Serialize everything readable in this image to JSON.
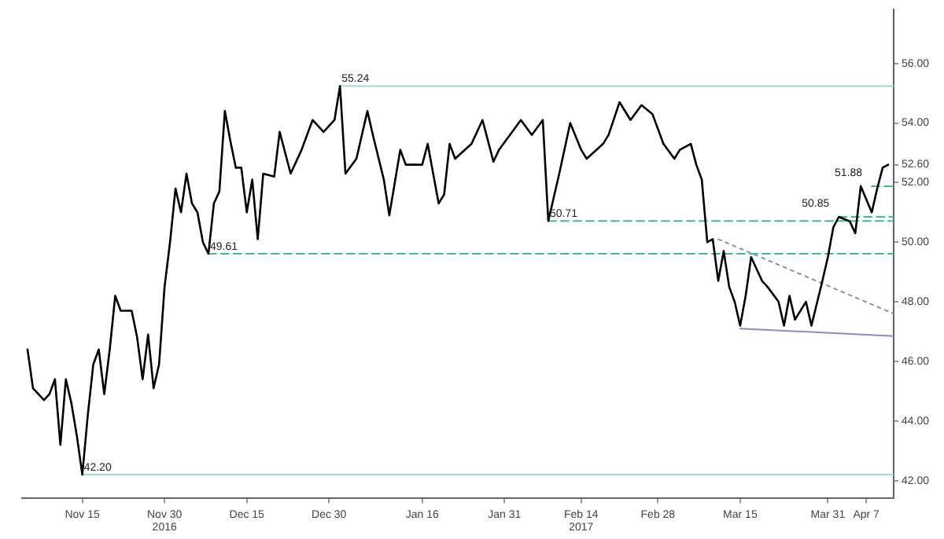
{
  "chart_data": {
    "type": "line",
    "marker": "none",
    "line_style": "solid",
    "grid": false,
    "legend": false,
    "xlim": [
      "2016-11-04",
      "2017-04-12"
    ],
    "ylim": [
      41.4,
      57.8
    ],
    "xticks": [
      {
        "value": "2016-11-15",
        "label": "Nov 15"
      },
      {
        "value": "2016-11-30",
        "label": "Nov 30\n2016"
      },
      {
        "value": "2016-12-15",
        "label": "Dec 15"
      },
      {
        "value": "2016-12-30",
        "label": "Dec 30"
      },
      {
        "value": "2017-01-16",
        "label": "Jan 16"
      },
      {
        "value": "2017-01-31",
        "label": "Jan 31"
      },
      {
        "value": "2017-02-14",
        "label": "Feb 14\n2017"
      },
      {
        "value": "2017-02-28",
        "label": "Feb 28"
      },
      {
        "value": "2017-03-15",
        "label": "Mar 15"
      },
      {
        "value": "2017-03-31",
        "label": "Mar 31"
      },
      {
        "value": "2017-04-07",
        "label": "Apr 7"
      }
    ],
    "yticks": [
      {
        "value": 42,
        "label": "42.00"
      },
      {
        "value": 44,
        "label": "44.00"
      },
      {
        "value": 46,
        "label": "46.00"
      },
      {
        "value": 48,
        "label": "48.00"
      },
      {
        "value": 50,
        "label": "50.00"
      },
      {
        "value": 52,
        "label": "52.00"
      },
      {
        "value": 52.6,
        "label": "52.60"
      },
      {
        "value": 54,
        "label": "54.00"
      },
      {
        "value": 56,
        "label": "56.00"
      }
    ],
    "series": [
      {
        "color": "#000000",
        "x": [
          "2016-11-05",
          "2016-11-06",
          "2016-11-08",
          "2016-11-09",
          "2016-11-10",
          "2016-11-11",
          "2016-11-12",
          "2016-11-13",
          "2016-11-14",
          "2016-11-15",
          "2016-11-16",
          "2016-11-17",
          "2016-11-18",
          "2016-11-19",
          "2016-11-20",
          "2016-11-21",
          "2016-11-22",
          "2016-11-24",
          "2016-11-25",
          "2016-11-26",
          "2016-11-27",
          "2016-11-28",
          "2016-11-29",
          "2016-11-30",
          "2016-12-01",
          "2016-12-02",
          "2016-12-03",
          "2016-12-04",
          "2016-12-05",
          "2016-12-06",
          "2016-12-07",
          "2016-12-08",
          "2016-12-09",
          "2016-12-10",
          "2016-12-11",
          "2016-12-12",
          "2016-12-13",
          "2016-12-14",
          "2016-12-15",
          "2016-12-16",
          "2016-12-17",
          "2016-12-18",
          "2016-12-20",
          "2016-12-21",
          "2016-12-23",
          "2016-12-25",
          "2016-12-27",
          "2016-12-29",
          "2016-12-31",
          "2017-01-01",
          "2017-01-02",
          "2017-01-04",
          "2017-01-06",
          "2017-01-07",
          "2017-01-09",
          "2017-01-10",
          "2017-01-12",
          "2017-01-13",
          "2017-01-16",
          "2017-01-17",
          "2017-01-19",
          "2017-01-20",
          "2017-01-21",
          "2017-01-22",
          "2017-01-25",
          "2017-01-27",
          "2017-01-29",
          "2017-01-30",
          "2017-02-03",
          "2017-02-05",
          "2017-02-07",
          "2017-02-08",
          "2017-02-10",
          "2017-02-12",
          "2017-02-14",
          "2017-02-15",
          "2017-02-18",
          "2017-02-19",
          "2017-02-21",
          "2017-02-23",
          "2017-02-25",
          "2017-02-27",
          "2017-03-01",
          "2017-03-03",
          "2017-03-04",
          "2017-03-06",
          "2017-03-07",
          "2017-03-08",
          "2017-03-09",
          "2017-03-10",
          "2017-03-11",
          "2017-03-12",
          "2017-03-13",
          "2017-03-14",
          "2017-03-15",
          "2017-03-16",
          "2017-03-17",
          "2017-03-19",
          "2017-03-20",
          "2017-03-22",
          "2017-03-23",
          "2017-03-24",
          "2017-03-25",
          "2017-03-27",
          "2017-03-28",
          "2017-03-30",
          "2017-03-31",
          "2017-04-01",
          "2017-04-02",
          "2017-04-04",
          "2017-04-05",
          "2017-04-06",
          "2017-04-08",
          "2017-04-09",
          "2017-04-10",
          "2017-04-11"
        ],
        "values": [
          46.4,
          45.1,
          44.7,
          44.9,
          45.4,
          43.2,
          45.4,
          44.6,
          43.5,
          42.2,
          44.2,
          45.9,
          46.4,
          44.9,
          46.4,
          48.2,
          47.7,
          47.7,
          46.8,
          45.4,
          46.9,
          45.1,
          45.9,
          48.5,
          50.0,
          51.8,
          51.0,
          52.3,
          51.3,
          51.0,
          50.0,
          49.61,
          51.3,
          51.7,
          54.4,
          53.4,
          52.5,
          52.5,
          51.0,
          52.1,
          50.1,
          52.3,
          52.2,
          53.7,
          52.3,
          53.1,
          54.1,
          53.7,
          54.1,
          55.24,
          52.3,
          52.8,
          54.4,
          53.6,
          52.1,
          50.9,
          53.1,
          52.6,
          52.6,
          53.3,
          51.3,
          51.6,
          53.3,
          52.8,
          53.3,
          54.1,
          52.7,
          53.1,
          54.1,
          53.6,
          54.1,
          50.71,
          52.3,
          54.0,
          53.1,
          52.8,
          53.3,
          53.6,
          54.7,
          54.1,
          54.6,
          54.3,
          53.3,
          52.8,
          53.1,
          53.3,
          52.6,
          52.1,
          50.0,
          50.1,
          48.7,
          49.7,
          48.5,
          48.0,
          47.2,
          48.2,
          49.5,
          48.7,
          48.5,
          48.0,
          47.2,
          48.2,
          47.4,
          48.0,
          47.2,
          48.7,
          49.5,
          50.5,
          50.85,
          50.7,
          50.3,
          51.88,
          51.0,
          51.8,
          52.5,
          52.6
        ]
      },
      {
        "type": "line",
        "color": "#9fdcc8",
        "line_style": "solid",
        "x": [
          "2017-01-01",
          "2017-04-12"
        ],
        "values": [
          55.24,
          55.24
        ]
      },
      {
        "type": "line",
        "color": "#9fdcc8",
        "line_style": "solid",
        "x": [
          "2016-11-15",
          "2017-04-12"
        ],
        "values": [
          42.2,
          42.2
        ]
      },
      {
        "type": "line",
        "color": "#3cbf96",
        "line_style": "dashed",
        "x": [
          "2016-12-08",
          "2017-04-12"
        ],
        "values": [
          49.61,
          49.61
        ]
      },
      {
        "type": "line",
        "color": "#3cbf96",
        "line_style": "dashed",
        "x": [
          "2017-02-08",
          "2017-04-12"
        ],
        "values": [
          50.71,
          50.71
        ]
      },
      {
        "type": "line",
        "color": "#3cbf96",
        "line_style": "dashed",
        "x": [
          "2017-04-02",
          "2017-04-12"
        ],
        "values": [
          50.85,
          50.85
        ]
      },
      {
        "type": "line",
        "color": "#3cbf96",
        "line_style": "dashed",
        "x": [
          "2017-04-08",
          "2017-04-12"
        ],
        "values": [
          51.88,
          51.88
        ]
      },
      {
        "type": "line",
        "color": "#8a8ac8",
        "line_style": "dotted",
        "x": [
          "2017-03-11",
          "2017-04-12"
        ],
        "values": [
          50.1,
          47.6
        ]
      },
      {
        "type": "line",
        "color": "#8a8ac8",
        "line_style": "solid",
        "x": [
          "2017-03-15",
          "2017-04-12"
        ],
        "values": [
          47.1,
          46.85
        ]
      }
    ],
    "annotations": [
      {
        "text": "55.24",
        "x": "2017-01-01",
        "y": 55.24
      },
      {
        "text": "42.20",
        "x": "2016-11-15",
        "y": 42.2
      },
      {
        "text": "49.61",
        "x": "2016-12-08",
        "y": 49.61
      },
      {
        "text": "50.71",
        "x": "2017-02-08",
        "y": 50.71
      },
      {
        "text": "50.85",
        "x": "2017-04-02",
        "y": 50.85
      },
      {
        "text": "51.88",
        "x": "2017-04-08",
        "y": 51.88
      }
    ]
  }
}
